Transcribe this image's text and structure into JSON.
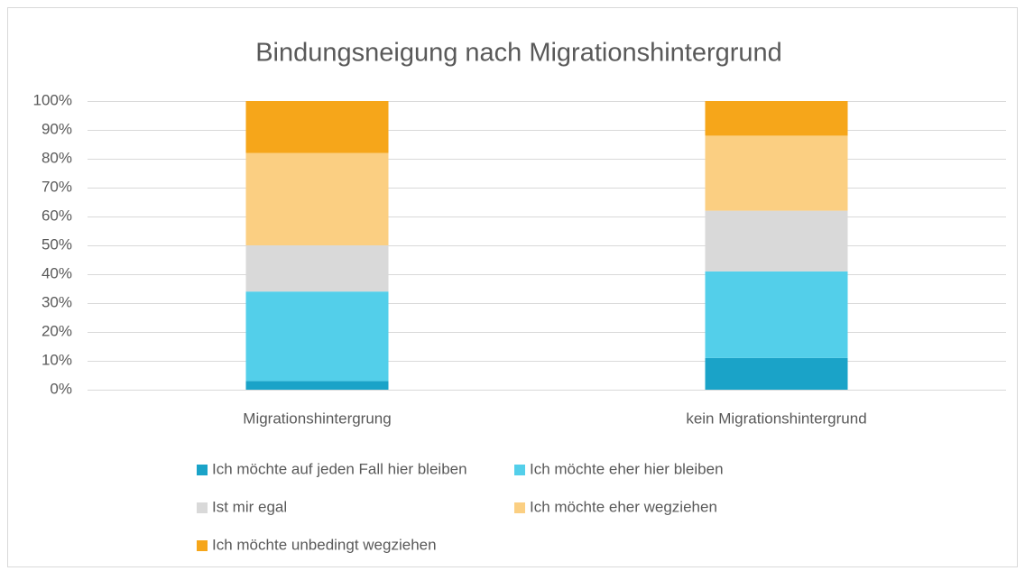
{
  "chart_data": {
    "type": "stacked_bar",
    "title": "Bindungsneigung nach Migrationshintergrund",
    "categories": [
      "Migrationshintergrung",
      "kein Migrationshintergrund"
    ],
    "series": [
      {
        "name": "Ich möchte auf jeden Fall hier bleiben",
        "color": "#1aa3c8",
        "values": [
          3,
          11
        ]
      },
      {
        "name": "Ich möchte eher hier bleiben",
        "color": "#53cfea",
        "values": [
          31,
          30
        ]
      },
      {
        "name": "Ist mir egal",
        "color": "#d9d9d9",
        "values": [
          16,
          21
        ]
      },
      {
        "name": "Ich möchte eher wegziehen",
        "color": "#fbcf82",
        "values": [
          32,
          26
        ]
      },
      {
        "name": "Ich möchte unbedingt wegziehen",
        "color": "#f6a61a",
        "values": [
          18,
          12
        ]
      }
    ],
    "ylim": [
      0,
      100
    ],
    "yticks": [
      {
        "value": 0,
        "label": "0%"
      },
      {
        "value": 10,
        "label": "10%"
      },
      {
        "value": 20,
        "label": "20%"
      },
      {
        "value": 30,
        "label": "30%"
      },
      {
        "value": 40,
        "label": "40%"
      },
      {
        "value": 50,
        "label": "50%"
      },
      {
        "value": 60,
        "label": "60%"
      },
      {
        "value": 70,
        "label": "70%"
      },
      {
        "value": 80,
        "label": "80%"
      },
      {
        "value": 90,
        "label": "90%"
      },
      {
        "value": 100,
        "label": "100%"
      }
    ],
    "grid": true,
    "legend": "bottom"
  }
}
